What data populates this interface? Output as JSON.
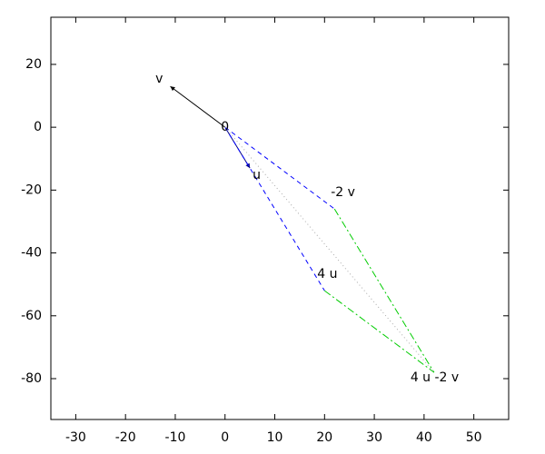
{
  "chart_data": {
    "type": "vector",
    "xlim": [
      -35,
      57
    ],
    "ylim": [
      -93,
      35
    ],
    "xticks": [
      -30,
      -20,
      -10,
      0,
      10,
      20,
      30,
      40,
      50
    ],
    "yticks": [
      -80,
      -60,
      -40,
      -20,
      0,
      20
    ],
    "points": [
      {
        "label": "0",
        "x": 0,
        "y": 0
      },
      {
        "label": "v",
        "x": -11,
        "y": 13
      },
      {
        "label": "u",
        "x": 5,
        "y": -13
      },
      {
        "label": "-2 v",
        "x": 22,
        "y": -26
      },
      {
        "label": "4 u",
        "x": 20,
        "y": -52
      },
      {
        "label": "4 u -2 v",
        "x": 42,
        "y": -78
      }
    ],
    "segments": [
      {
        "x": [
          0,
          -11
        ],
        "y": [
          0,
          13
        ],
        "color": "#000000",
        "dash": "solid",
        "arrow": true
      },
      {
        "x": [
          0,
          5
        ],
        "y": [
          0,
          -13
        ],
        "color": "#000080",
        "dash": "solid",
        "arrow": true
      },
      {
        "x": [
          0,
          22
        ],
        "y": [
          0,
          -26
        ],
        "color": "#0000ff",
        "dash": "dashed",
        "arrow": false
      },
      {
        "x": [
          0,
          20
        ],
        "y": [
          0,
          -52
        ],
        "color": "#0000ff",
        "dash": "dashed",
        "arrow": false
      },
      {
        "x": [
          22,
          42
        ],
        "y": [
          -26,
          -78
        ],
        "color": "#00cc00",
        "dash": "dashdot",
        "arrow": false
      },
      {
        "x": [
          20,
          42
        ],
        "y": [
          -52,
          -78
        ],
        "color": "#00cc00",
        "dash": "dashdot",
        "arrow": false
      },
      {
        "x": [
          0,
          42
        ],
        "y": [
          0,
          -78
        ],
        "color": "#aaaaaa",
        "dash": "dotted",
        "arrow": false
      }
    ]
  }
}
